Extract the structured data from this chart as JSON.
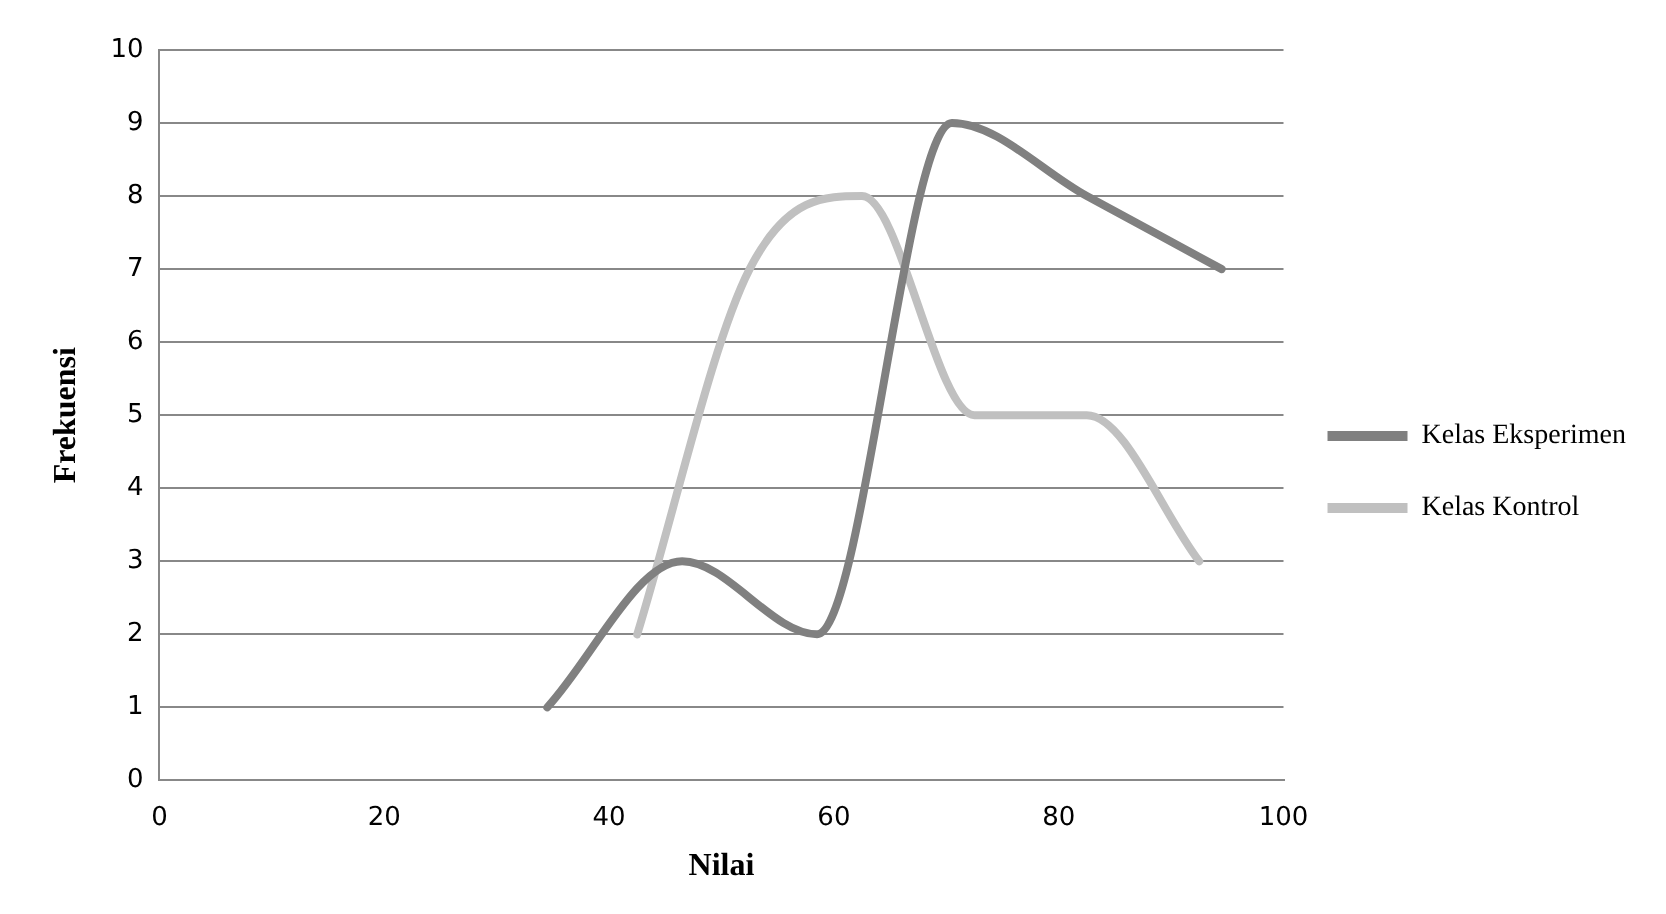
{
  "chart_data": {
    "type": "line",
    "xlabel": "Nilai",
    "ylabel": "Frekuensi",
    "xlim": [
      0,
      100
    ],
    "xticks": [
      0,
      20,
      40,
      60,
      80,
      100
    ],
    "ylim": [
      0,
      10
    ],
    "yticks": [
      0,
      1,
      2,
      3,
      4,
      5,
      6,
      7,
      8,
      9,
      10
    ],
    "grid": "y",
    "legend": "right",
    "marker": "none",
    "line_style": "solid",
    "series": [
      {
        "name": "Kelas Eksperimen",
        "color": "#808080",
        "x": [
          34.5,
          46.5,
          58.5,
          70.5,
          82.5,
          94.5
        ],
        "values": [
          1,
          3,
          2,
          9,
          8,
          7
        ]
      },
      {
        "name": "Kelas Kontrol",
        "color": "#c0c0c0",
        "x": [
          42.5,
          52.5,
          62.5,
          72.5,
          82.5,
          92.5
        ],
        "values": [
          2,
          7,
          8,
          5,
          5,
          3
        ]
      }
    ]
  }
}
